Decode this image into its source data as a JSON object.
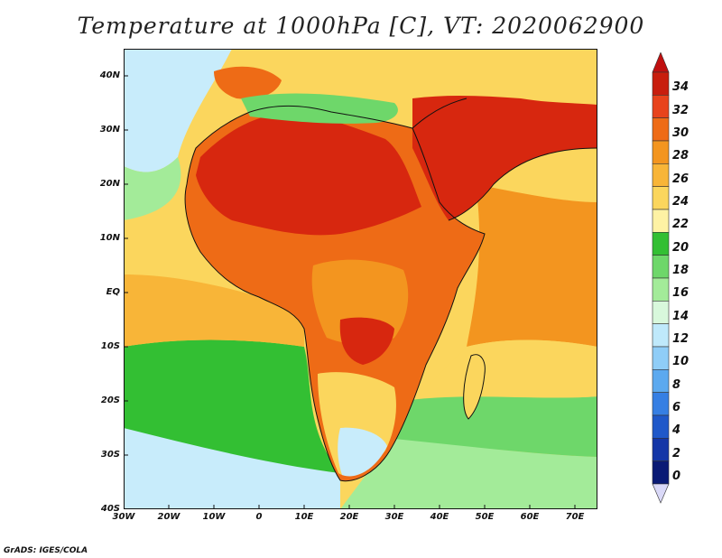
{
  "title": "Temperature at 1000hPa [C], VT: 2020062900",
  "credit": "GrADS: IGES/COLA",
  "map": {
    "type": "filled-contour-map",
    "variable": "Temperature at 1000hPa",
    "units": "C",
    "valid_time": "2020062900",
    "lon_range": [
      -30,
      75
    ],
    "lat_range": [
      -40,
      45
    ],
    "lat_ticks": [
      "40N",
      "30N",
      "20N",
      "10N",
      "EQ",
      "10S",
      "20S",
      "30S",
      "40S"
    ],
    "lon_ticks": [
      "30W",
      "20W",
      "10W",
      "0",
      "10E",
      "20E",
      "30E",
      "40E",
      "50E",
      "60E",
      "70E"
    ]
  },
  "colorbar": {
    "labels": [
      "34",
      "32",
      "30",
      "28",
      "26",
      "24",
      "22",
      "20",
      "18",
      "16",
      "14",
      "12",
      "10",
      "8",
      "6",
      "4",
      "2",
      "0"
    ],
    "colors": [
      "#c81e0e",
      "#e8431c",
      "#ee6b16",
      "#f3951f",
      "#f8b538",
      "#fbd65d",
      "#fef2a4",
      "#33bf33",
      "#6ed76a",
      "#a3eb99",
      "#d8f8dc",
      "#bfe9fb",
      "#8fcdf7",
      "#5ca9ef",
      "#367fe3",
      "#1f58c9",
      "#1436a7",
      "#0a1a75"
    ],
    "above_color": "#c01010",
    "below_color": "#dad9f8"
  },
  "palette": {
    "ocean_cool": "#c8ecfb",
    "ocean_mid": "#a3eb99",
    "ocean_green": "#33bf33",
    "ocean_warm": "#fbd65d",
    "ocean_orange": "#f8b538",
    "ocean_hot": "#f3951f",
    "land_hot": "#d7270f",
    "land_warm": "#ee6b16",
    "land_mid": "#f3951f",
    "coast": "#111111"
  }
}
